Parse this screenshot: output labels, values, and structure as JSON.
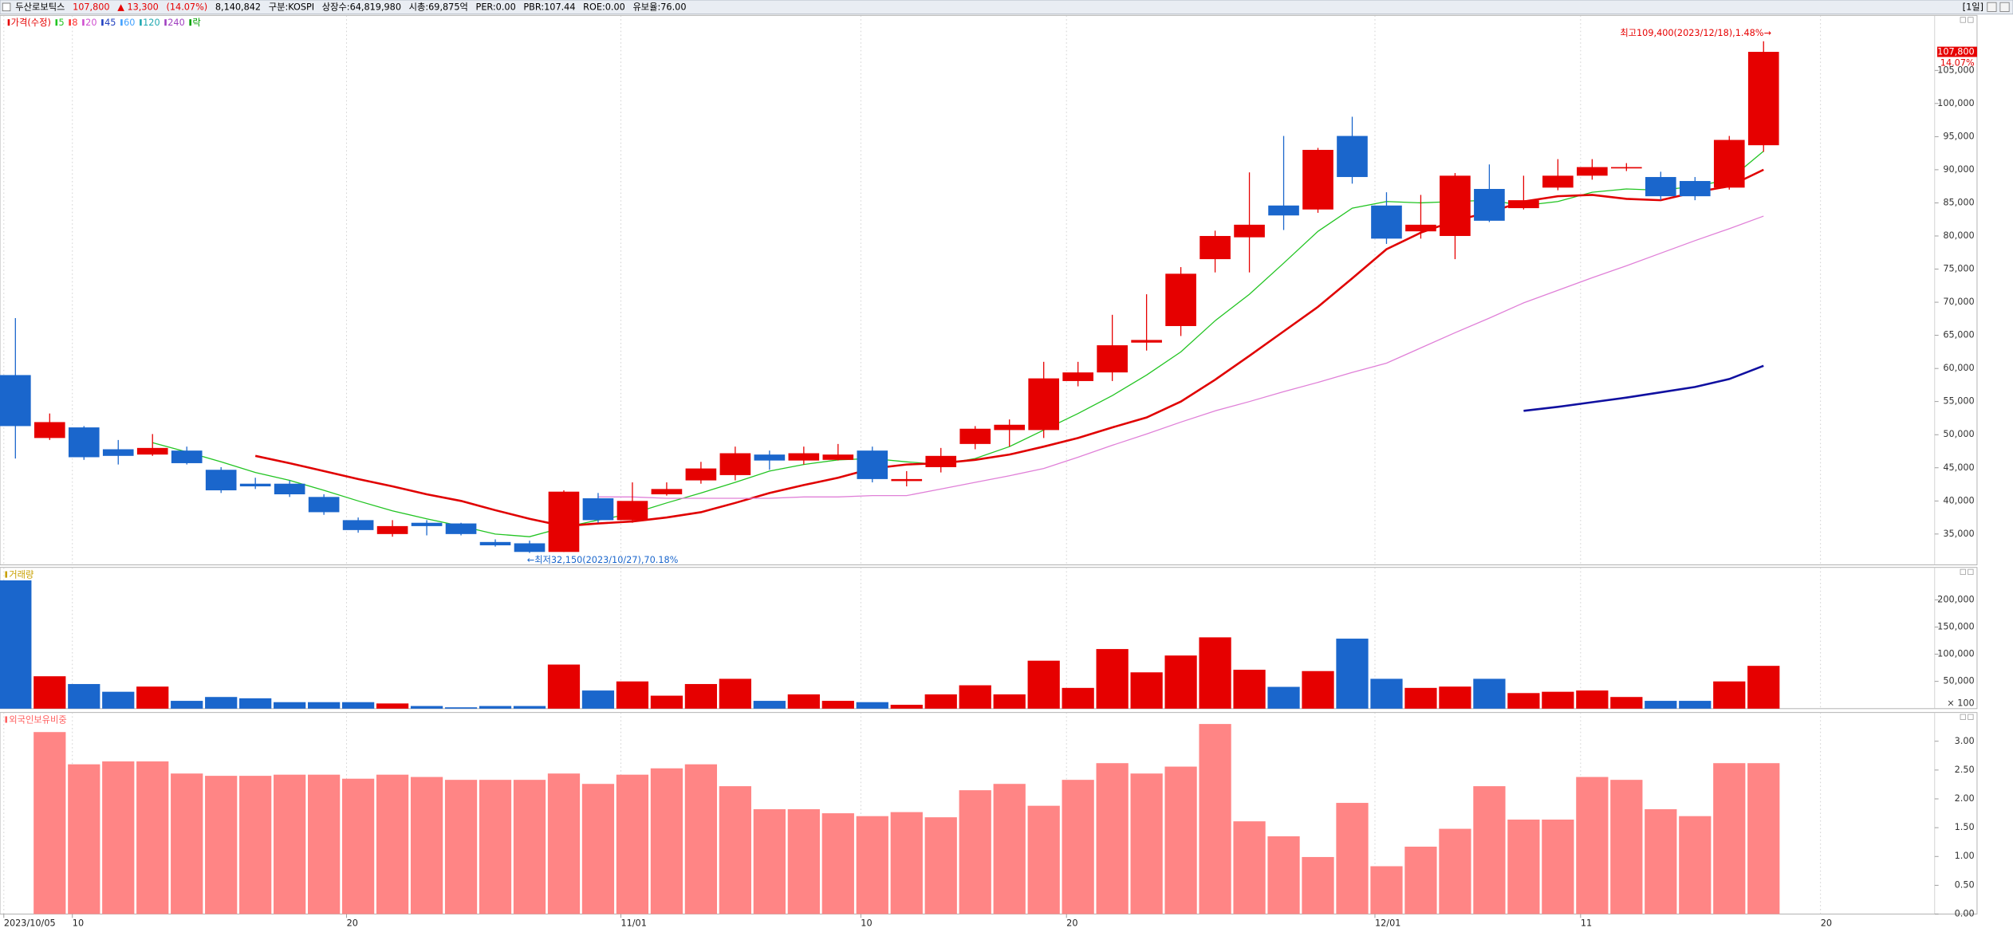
{
  "header": {
    "items": [
      {
        "text": "두산로보틱스",
        "color": "#000000"
      },
      {
        "text": "107,800",
        "color": "#e60000"
      },
      {
        "text": "▲ 13,300",
        "color": "#e60000"
      },
      {
        "text": "(14.07%)",
        "color": "#e60000"
      },
      {
        "text": "8,140,842",
        "color": "#000000"
      },
      {
        "text": "구분:KOSPI",
        "color": "#000000"
      },
      {
        "text": "상장수:64,819,980",
        "color": "#000000"
      },
      {
        "text": "시총:69,875억",
        "color": "#000000"
      },
      {
        "text": "PER:0.00",
        "color": "#000000"
      },
      {
        "text": "PBR:107.44",
        "color": "#000000"
      },
      {
        "text": "ROE:0.00",
        "color": "#000000"
      },
      {
        "text": "유보율:76.00",
        "color": "#000000"
      }
    ],
    "timeframe": "[1일]"
  },
  "chart_data": [
    {
      "type": "candlestick",
      "up_color": "#e60000",
      "down_color": "#1a66cc",
      "categories": [
        "2023/10/05",
        null,
        "10",
        null,
        null,
        null,
        null,
        null,
        null,
        null,
        "20",
        null,
        null,
        null,
        null,
        null,
        null,
        null,
        "11/01",
        null,
        null,
        null,
        null,
        null,
        null,
        "10",
        null,
        null,
        null,
        null,
        null,
        "20",
        null,
        null,
        null,
        null,
        null,
        null,
        null,
        null,
        "12/01",
        null,
        null,
        null,
        null,
        null,
        "11",
        null,
        null,
        null,
        null,
        null
      ],
      "x_future_label": "20",
      "open": [
        59000,
        49500,
        51100,
        47800,
        47000,
        47600,
        44700,
        42600,
        42600,
        40600,
        37100,
        35000,
        36700,
        36600,
        33800,
        33600,
        32300,
        40400,
        37100,
        41000,
        43100,
        43900,
        47000,
        46100,
        46200,
        47600,
        43000,
        45100,
        48600,
        50700,
        50700,
        58100,
        59400,
        63900,
        66400,
        76500,
        79800,
        84600,
        84000,
        95100,
        84600,
        80700,
        80000,
        87100,
        84200,
        87300,
        89100,
        90200,
        88900,
        88300,
        87300,
        93700
      ],
      "high": [
        67600,
        53200,
        51300,
        49200,
        50100,
        48200,
        45100,
        43500,
        43100,
        41000,
        37500,
        37100,
        37100,
        36700,
        34200,
        34000,
        41600,
        41200,
        42800,
        42800,
        45900,
        48200,
        47600,
        48200,
        48600,
        48200,
        44500,
        48000,
        51300,
        52300,
        61000,
        61000,
        68100,
        71200,
        75300,
        80800,
        89600,
        95100,
        93300,
        98000,
        86600,
        86200,
        89500,
        90800,
        89100,
        91600,
        91600,
        91000,
        89700,
        88900,
        95100,
        109400
      ],
      "low": [
        46400,
        49200,
        46200,
        45500,
        46800,
        45500,
        41200,
        41800,
        40600,
        37900,
        35200,
        34600,
        34800,
        34800,
        33100,
        32150,
        32300,
        36700,
        36700,
        40800,
        42600,
        43100,
        44700,
        45500,
        46100,
        42800,
        42200,
        44300,
        47800,
        48200,
        49500,
        57300,
        58100,
        62700,
        64900,
        74500,
        74500,
        80900,
        83500,
        87900,
        78800,
        79600,
        76500,
        82100,
        84000,
        86900,
        88500,
        89800,
        85400,
        85400,
        87000,
        92700
      ],
      "close": [
        51300,
        51900,
        46600,
        46800,
        48000,
        45700,
        41600,
        42200,
        41000,
        38300,
        35600,
        36200,
        36200,
        35000,
        33300,
        32300,
        41400,
        37100,
        40000,
        41800,
        44900,
        47200,
        46100,
        47200,
        47000,
        43300,
        43300,
        46800,
        50900,
        51500,
        58500,
        59400,
        63500,
        64300,
        74300,
        80000,
        81700,
        83100,
        93000,
        88900,
        79600,
        81700,
        89100,
        82300,
        85400,
        89100,
        90400,
        90400,
        86000,
        86000,
        94500,
        107800
      ],
      "series": [
        {
          "color": "#22c422",
          "width": 0.8,
          "values": [
            null,
            null,
            null,
            null,
            48800,
            47400,
            45900,
            44300,
            43100,
            41600,
            40000,
            38500,
            37300,
            36200,
            35000,
            34600,
            36000,
            37100,
            38100,
            39700,
            41200,
            42800,
            44500,
            45500,
            46200,
            46400,
            45900,
            45500,
            46400,
            48200,
            50700,
            53200,
            55900,
            59000,
            62500,
            67200,
            71200,
            75900,
            80700,
            84200,
            85200,
            85000,
            85200,
            85400,
            84600,
            85200,
            86600,
            87100,
            86900,
            87500,
            88500,
            92800
          ]
        },
        {
          "color": "#e00000",
          "width": 1.6,
          "values": [
            null,
            null,
            null,
            null,
            null,
            null,
            null,
            46800,
            45700,
            44500,
            43300,
            42200,
            41000,
            40000,
            38600,
            37300,
            36200,
            36600,
            36900,
            37500,
            38300,
            39700,
            41200,
            42400,
            43500,
            44900,
            45500,
            45700,
            46200,
            47000,
            48200,
            49500,
            51100,
            52600,
            55000,
            58300,
            61900,
            65600,
            69300,
            73600,
            78000,
            80500,
            82300,
            83600,
            85200,
            86000,
            86200,
            85600,
            85400,
            86600,
            87500,
            90000
          ]
        },
        {
          "color": "#e080d8",
          "width": 0.8,
          "values": [
            null,
            null,
            null,
            null,
            null,
            null,
            null,
            null,
            null,
            null,
            null,
            null,
            null,
            null,
            null,
            null,
            null,
            40600,
            40600,
            40400,
            40400,
            40400,
            40400,
            40600,
            40600,
            40800,
            40800,
            41800,
            42800,
            43800,
            44900,
            46600,
            48400,
            50100,
            51900,
            53600,
            55000,
            56500,
            57900,
            59400,
            60800,
            63100,
            65400,
            67600,
            69900,
            71800,
            73700,
            75500,
            77400,
            79300,
            81100,
            83000
          ]
        },
        {
          "color": "#1010a0",
          "width": 1.6,
          "values": [
            null,
            null,
            null,
            null,
            null,
            null,
            null,
            null,
            null,
            null,
            null,
            null,
            null,
            null,
            null,
            null,
            null,
            null,
            null,
            null,
            null,
            null,
            null,
            null,
            null,
            null,
            null,
            null,
            null,
            null,
            null,
            null,
            null,
            null,
            null,
            null,
            null,
            null,
            null,
            null,
            null,
            null,
            null,
            null,
            53600,
            54200,
            54900,
            55600,
            56400,
            57200,
            58400,
            60400
          ]
        }
      ],
      "legend": [
        {
          "name": "가격(수정)",
          "color": "#e60000"
        },
        {
          "name": "5",
          "color": "#22c422"
        },
        {
          "name": "8",
          "color": "#ff3030"
        },
        {
          "name": "20",
          "color": "#d050d0"
        },
        {
          "name": "45",
          "color": "#2040c0"
        },
        {
          "name": "60",
          "color": "#40a0ff"
        },
        {
          "name": "120",
          "color": "#20a8b0"
        },
        {
          "name": "240",
          "color": "#a040c0"
        },
        {
          "name": "락",
          "color": "#00a000"
        }
      ],
      "high_annotation": "최고109,400(2023/12/18),1.48%→",
      "low_annotation": "←최저32,150(2023/10/27),70.18%",
      "last_price_label": "107,800",
      "last_change_label": "14.07%",
      "ylim": [
        30350,
        113300
      ],
      "yticks": [
        {
          "value": 35000,
          "label": "35,000"
        },
        {
          "value": 40000,
          "label": "40,000"
        },
        {
          "value": 45000,
          "label": "45,000"
        },
        {
          "value": 50000,
          "label": "50,000"
        },
        {
          "value": 55000,
          "label": "55,000"
        },
        {
          "value": 60000,
          "label": "60,000"
        },
        {
          "value": 65000,
          "label": "65,000"
        },
        {
          "value": 70000,
          "label": "70,000"
        },
        {
          "value": 75000,
          "label": "75,000"
        },
        {
          "value": 80000,
          "label": "80,000"
        },
        {
          "value": 85000,
          "label": "85,000"
        },
        {
          "value": 90000,
          "label": "90,000"
        },
        {
          "value": 95000,
          "label": "95,000"
        },
        {
          "value": 100000,
          "label": "100,000"
        },
        {
          "value": 105000,
          "label": "105,000"
        }
      ]
    },
    {
      "type": "bar",
      "title": "거래량",
      "title_color": "#c8a000",
      "up_color": "#e60000",
      "down_color": "#1a66cc",
      "values": [
        235700,
        59500,
        45200,
        31000,
        40500,
        14300,
        21400,
        19000,
        11900,
        11900,
        11900,
        9500,
        4800,
        2400,
        4800,
        4800,
        81000,
        33300,
        50000,
        23800,
        45200,
        54800,
        14300,
        26200,
        14300,
        11900,
        7100,
        26200,
        42900,
        26200,
        88100,
        38100,
        109500,
        66700,
        97600,
        131000,
        71400,
        40000,
        69000,
        128600,
        54800,
        38100,
        40500,
        54800,
        28600,
        31000,
        33300,
        21400,
        14300,
        14300,
        50000,
        78600
      ],
      "unit_label": "× 100",
      "ylim": [
        0,
        259500
      ],
      "yticks": [
        {
          "value": 50000,
          "label": "50,000"
        },
        {
          "value": 100000,
          "label": "100,000"
        },
        {
          "value": 150000,
          "label": "150,000"
        },
        {
          "value": 200000,
          "label": "200,000"
        }
      ]
    },
    {
      "type": "bar",
      "title": "외국인보유비중",
      "title_color": "#ff6060",
      "color": "#ff8585",
      "values": [
        null,
        3.16,
        2.6,
        2.65,
        2.65,
        2.44,
        2.4,
        2.4,
        2.42,
        2.42,
        2.35,
        2.42,
        2.38,
        2.33,
        2.33,
        2.33,
        2.44,
        2.26,
        2.42,
        2.53,
        2.6,
        2.22,
        1.82,
        1.82,
        1.75,
        1.7,
        1.77,
        1.68,
        2.15,
        2.26,
        1.88,
        2.33,
        2.62,
        2.44,
        2.56,
        3.3,
        1.61,
        1.35,
        0.99,
        1.93,
        0.83,
        1.17,
        1.48,
        2.22,
        1.64,
        1.64,
        2.38,
        2.33,
        1.82,
        1.7,
        2.62,
        2.62
      ],
      "ylim": [
        0,
        3.5
      ],
      "yticks": [
        {
          "value": 0,
          "label": "0.00"
        },
        {
          "value": 0.5,
          "label": "0.50"
        },
        {
          "value": 1,
          "label": "1.00"
        },
        {
          "value": 1.5,
          "label": "1.50"
        },
        {
          "value": 2,
          "label": "2.00"
        },
        {
          "value": 2.5,
          "label": "2.50"
        },
        {
          "value": 3,
          "label": "3.00"
        }
      ]
    }
  ]
}
